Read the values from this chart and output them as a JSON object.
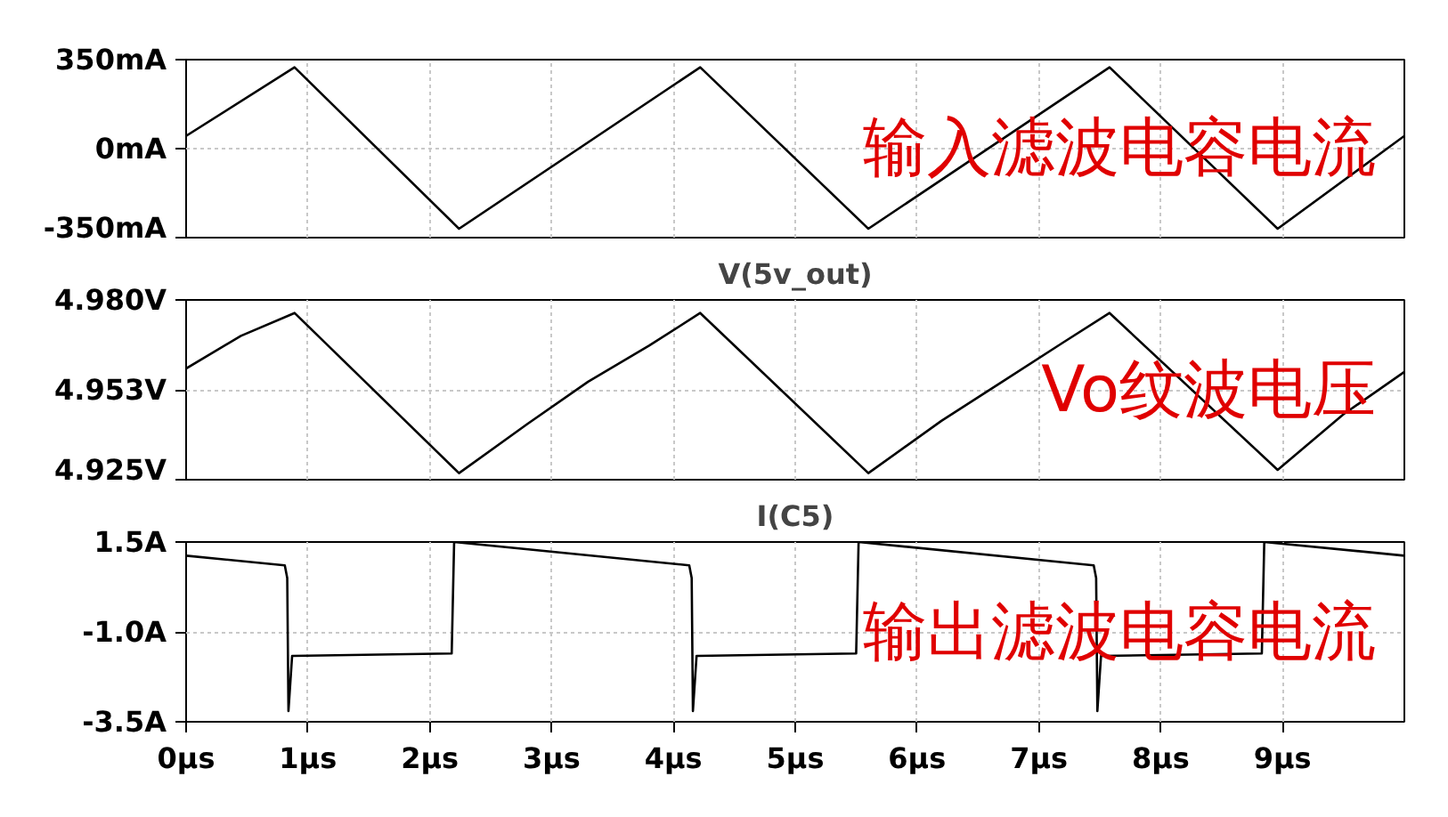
{
  "chart_data": [
    {
      "type": "line",
      "annotations": [
        "输入滤波电容电流"
      ],
      "xlim": [
        0,
        10
      ],
      "ylim": [
        -350,
        350
      ],
      "xticks": [
        0,
        1,
        2,
        3,
        4,
        5,
        6,
        7,
        8,
        9
      ],
      "yticks": [
        {
          "value": 350,
          "label": "350mA"
        },
        {
          "value": 0,
          "label": "0mA"
        },
        {
          "value": -350,
          "label": "-350mA"
        }
      ],
      "tick_labels": "y",
      "grid": true,
      "series": [
        {
          "color": "#000000",
          "x": [
            0,
            0.89,
            2.24,
            4.22,
            5.6,
            7.58,
            8.96,
            10
          ],
          "values": [
            50,
            320,
            -315,
            320,
            -315,
            320,
            -315,
            50
          ]
        }
      ]
    },
    {
      "type": "line",
      "title": "V(5v_out)",
      "annotations": [
        "Vo纹波电压"
      ],
      "xlim": [
        0,
        10
      ],
      "ylim": [
        4.925,
        4.98
      ],
      "xticks": [
        0,
        1,
        2,
        3,
        4,
        5,
        6,
        7,
        8,
        9
      ],
      "yticks": [
        {
          "value": 4.98,
          "label": "4.980V"
        },
        {
          "value": 4.9525,
          "label": "4.953V"
        },
        {
          "value": 4.925,
          "label": "4.925V"
        }
      ],
      "tick_labels": "y",
      "grid": true,
      "series": [
        {
          "color": "#000000",
          "x": [
            0,
            0.45,
            0.89,
            2.24,
            2.8,
            3.3,
            3.8,
            4.22,
            5.6,
            6.2,
            6.7,
            7.2,
            7.58,
            8.96,
            9.5,
            10
          ],
          "values": [
            4.959,
            4.969,
            4.976,
            4.927,
            4.942,
            4.955,
            4.966,
            4.976,
            4.927,
            4.943,
            4.955,
            4.967,
            4.976,
            4.928,
            4.945,
            4.958
          ]
        }
      ]
    },
    {
      "type": "line",
      "title": "I(C5)",
      "annotations": [
        "输出滤波电容电流"
      ],
      "xlim": [
        0,
        10
      ],
      "ylim": [
        -3.5,
        1.5
      ],
      "xticks": [
        {
          "value": 0,
          "label": "0µs"
        },
        {
          "value": 1,
          "label": "1µs"
        },
        {
          "value": 2,
          "label": "2µs"
        },
        {
          "value": 3,
          "label": "3µs"
        },
        {
          "value": 4,
          "label": "4µs"
        },
        {
          "value": 5,
          "label": "5µs"
        },
        {
          "value": 6,
          "label": "6µs"
        },
        {
          "value": 7,
          "label": "7µs"
        },
        {
          "value": 8,
          "label": "8µs"
        },
        {
          "value": 9,
          "label": "9µs"
        }
      ],
      "yticks": [
        {
          "value": 1.5,
          "label": "1.5A"
        },
        {
          "value": -1.0,
          "label": "-1.0A"
        },
        {
          "value": -3.5,
          "label": "-3.5A"
        }
      ],
      "grid": true,
      "series": [
        {
          "color": "#000000",
          "x": [
            0,
            0.81,
            0.83,
            0.84,
            0.87,
            2.18,
            2.2,
            4.13,
            4.15,
            4.16,
            4.19,
            5.5,
            5.52,
            7.45,
            7.47,
            7.48,
            7.51,
            8.83,
            8.85,
            10
          ],
          "values": [
            1.12,
            0.85,
            0.5,
            -3.2,
            -1.67,
            -1.6,
            1.5,
            0.85,
            0.5,
            -3.2,
            -1.67,
            -1.6,
            1.5,
            0.85,
            0.5,
            -3.2,
            -1.67,
            -1.6,
            1.5,
            1.12
          ]
        }
      ]
    }
  ]
}
